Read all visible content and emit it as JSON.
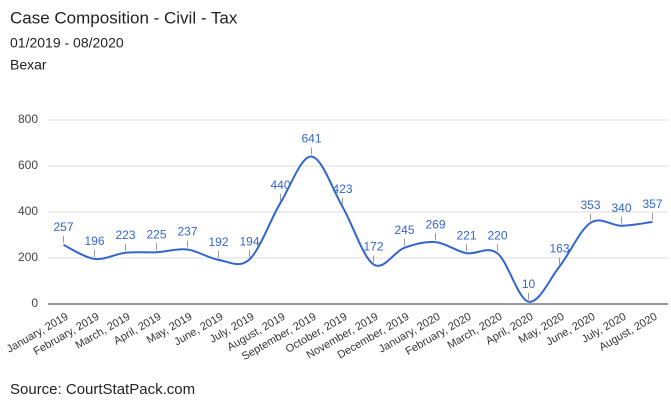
{
  "chart_data": {
    "type": "line",
    "title": "Case Composition - Civil - Tax",
    "subtitle": "01/2019 - 08/2020",
    "location": "Bexar",
    "source": "Source: CourtStatPack.com",
    "categories": [
      "January, 2019",
      "February, 2019",
      "March, 2019",
      "April, 2019",
      "May, 2019",
      "June, 2019",
      "July, 2019",
      "August, 2019",
      "September, 2019",
      "October, 2019",
      "November, 2019",
      "December, 2019",
      "January, 2020",
      "February, 2020",
      "March, 2020",
      "April, 2020",
      "May, 2020",
      "June, 2020",
      "July, 2020",
      "August, 2020"
    ],
    "values": [
      257,
      196,
      223,
      225,
      237,
      192,
      194,
      440,
      641,
      423,
      172,
      245,
      269,
      221,
      220,
      10,
      163,
      353,
      340,
      357
    ],
    "color": "#3366cc",
    "ylim": [
      0,
      800
    ],
    "yticks": [
      0,
      200,
      400,
      600,
      800
    ],
    "grid": true,
    "smooth": true
  }
}
